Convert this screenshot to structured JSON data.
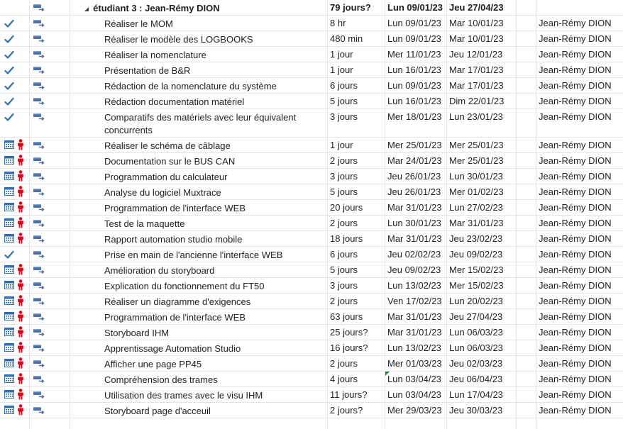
{
  "colors": {
    "check": "#2f6fb3",
    "person": "#e0001b",
    "calendar": "#2f6fb3",
    "mode_icon": "#4a6da6",
    "grid_line": "#e4e4e4"
  },
  "summary": {
    "name": "étudiant 3 : Jean-Rémy DION",
    "duration": "79 jours?",
    "start": "Lun 09/01/23",
    "end": "Jeu 27/04/23",
    "resource": ""
  },
  "tasks": [
    {
      "indicator": "check-icon",
      "name": "Réaliser le MOM",
      "duration": "8 hr",
      "start": "Lun 09/01/23",
      "end": "Mar 10/01/23",
      "resource": "Jean-Rémy DION"
    },
    {
      "indicator": "check-icon",
      "name": "Réaliser le modèle des LOGBOOKS",
      "duration": "480 min",
      "start": "Lun 09/01/23",
      "end": "Mar 10/01/23",
      "resource": "Jean-Rémy DION"
    },
    {
      "indicator": "check-icon",
      "name": "Réaliser la nomenclature",
      "duration": "1 jour",
      "start": "Mer 11/01/23",
      "end": "Jeu 12/01/23",
      "resource": "Jean-Rémy DION"
    },
    {
      "indicator": "check-icon",
      "name": "Présentation de B&R",
      "duration": "1 jour",
      "start": "Lun 16/01/23",
      "end": "Mar 17/01/23",
      "resource": "Jean-Rémy DION"
    },
    {
      "indicator": "check-icon",
      "name": "Rédaction de la nomenclature du système",
      "duration": "6 jours",
      "start": "Lun 09/01/23",
      "end": "Mar 17/01/23",
      "resource": "Jean-Rémy DION"
    },
    {
      "indicator": "check-icon",
      "name": "Rédaction documentation matériel",
      "duration": "5 jours",
      "start": "Lun 16/01/23",
      "end": "Dim 22/01/23",
      "resource": "Jean-Rémy DION"
    },
    {
      "indicator": "check-icon",
      "name": "Comparatifs des matériels avec leur équivalent concurrents",
      "duration": "3 jours",
      "start": "Mer 18/01/23",
      "end": "Lun 23/01/23",
      "resource": "Jean-Rémy DION",
      "tall": true
    },
    {
      "indicator": "calendar-person",
      "name": "Réaliser le schéma de câblage",
      "duration": "1 jour",
      "start": "Mer 25/01/23",
      "end": "Mer 25/01/23",
      "resource": "Jean-Rémy DION"
    },
    {
      "indicator": "calendar-person",
      "name": "Documentation sur le BUS CAN",
      "duration": "2 jours",
      "start": "Mar 24/01/23",
      "end": "Mer 25/01/23",
      "resource": "Jean-Rémy DION"
    },
    {
      "indicator": "calendar-person",
      "name": "Programmation du calculateur",
      "duration": "3 jours",
      "start": "Jeu 26/01/23",
      "end": "Lun 30/01/23",
      "resource": "Jean-Rémy DION"
    },
    {
      "indicator": "calendar-person",
      "name": "Analyse du logiciel Muxtrace",
      "duration": "5 jours",
      "start": "Jeu 26/01/23",
      "end": "Mer 01/02/23",
      "resource": "Jean-Rémy DION"
    },
    {
      "indicator": "calendar-person",
      "name": "Programmation de l'interface WEB",
      "duration": "20 jours",
      "start": "Mar 31/01/23",
      "end": "Lun 27/02/23",
      "resource": "Jean-Rémy DION"
    },
    {
      "indicator": "calendar-person",
      "name": "Test de la maquette",
      "duration": "2 jours",
      "start": "Lun 30/01/23",
      "end": "Mar 31/01/23",
      "resource": "Jean-Rémy DION"
    },
    {
      "indicator": "calendar-person",
      "name": "Rapport automation studio mobile",
      "duration": "18 jours",
      "start": "Mar 31/01/23",
      "end": "Jeu 23/02/23",
      "resource": "Jean-Rémy DION"
    },
    {
      "indicator": "check-icon",
      "name": "Prise en main de l'ancienne l'interface WEB",
      "duration": "6 jours",
      "start": "Jeu 02/02/23",
      "end": "Jeu 09/02/23",
      "resource": "Jean-Rémy DION"
    },
    {
      "indicator": "calendar-person",
      "name": "Amélioration du storyboard",
      "duration": "5 jours",
      "start": "Jeu 09/02/23",
      "end": "Mer 15/02/23",
      "resource": "Jean-Rémy DION"
    },
    {
      "indicator": "calendar-person",
      "name": "Explication du fonctionnement du FT50",
      "duration": "3 jours",
      "start": "Lun 13/02/23",
      "end": "Mer 15/02/23",
      "resource": "Jean-Rémy DION"
    },
    {
      "indicator": "calendar-person",
      "name": "Réaliser un diagramme d'exigences",
      "duration": "2 jours",
      "start": "Ven 17/02/23",
      "end": "Lun 20/02/23",
      "resource": "Jean-Rémy DION"
    },
    {
      "indicator": "calendar-person",
      "name": "Programmation de l'interface WEB",
      "duration": "63 jours",
      "start": "Mar 31/01/23",
      "end": "Jeu 27/04/23",
      "resource": "Jean-Rémy DION"
    },
    {
      "indicator": "calendar-person",
      "name": "Storyboard IHM",
      "duration": "25 jours?",
      "start": "Mar 31/01/23",
      "end": "Lun 06/03/23",
      "resource": "Jean-Rémy DION"
    },
    {
      "indicator": "calendar-person",
      "name": "Apprentissage Automation Studio",
      "duration": "16 jours?",
      "start": "Lun 13/02/23",
      "end": "Lun 06/03/23",
      "resource": "Jean-Rémy DION"
    },
    {
      "indicator": "calendar-person",
      "name": "Afficher une page PP45",
      "duration": "2 jours",
      "start": "Mer 01/03/23",
      "end": "Jeu 02/03/23",
      "resource": "Jean-Rémy DION"
    },
    {
      "indicator": "calendar-person",
      "name": "Compréhension des trames",
      "duration": "4 jours",
      "start": "Lun 03/04/23",
      "end": "Jeu 06/04/23",
      "resource": "Jean-Rémy DION",
      "start_flag": true
    },
    {
      "indicator": "calendar-person",
      "name": "Utilisation des trames avec le visu IHM",
      "duration": "11 jours?",
      "start": "Lun 03/04/23",
      "end": "Lun 17/04/23",
      "resource": "Jean-Rémy DION"
    },
    {
      "indicator": "calendar-person",
      "name": "Storyboard page d'acceuil",
      "duration": "2 jours?",
      "start": "Mer 29/03/23",
      "end": "Jeu 30/03/23",
      "resource": "Jean-Rémy DION"
    }
  ]
}
